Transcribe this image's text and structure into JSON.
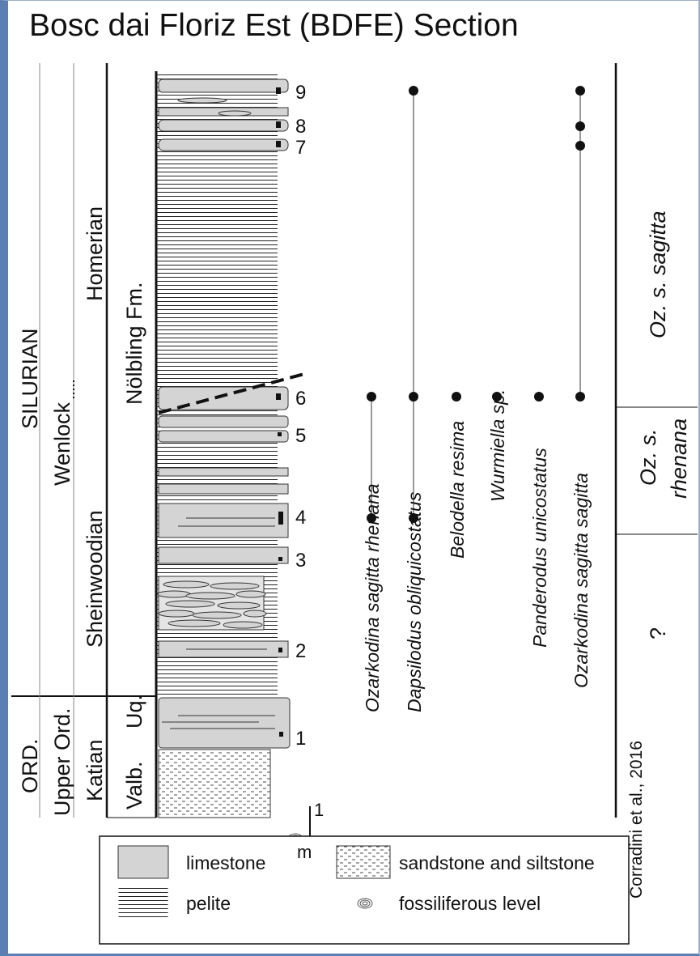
{
  "title": "Bosc dai Floriz Est (BDFE) Section",
  "credit": "Corradini et al., 2016",
  "stratigraphy": {
    "system_silurian": "SILURIAN",
    "system_ord": "ORD.",
    "series_wenlock": "Wenlock",
    "series_upper_ord": "Upper Ord.",
    "stage_homerian": "Homerian",
    "stage_sheinwoodian": "Sheinwoodian",
    "stage_katian": "Katian",
    "formation_nolbling": "Nölbling Fm.",
    "formation_uq": "Uq.",
    "formation_valb": "Valb."
  },
  "samples": [
    "1",
    "2",
    "3",
    "4",
    "5",
    "6",
    "7",
    "8",
    "9"
  ],
  "scale": {
    "value": "1",
    "unit": "m"
  },
  "taxa": [
    "Ozarkodina sagitta rhenana",
    "Dapsilodus obliquicostatus",
    "Belodella resima",
    "Wurmiella sp.",
    "Panderodus unicostatus",
    "Ozarkodina sagitta sagitta"
  ],
  "zones": {
    "upper": "Oz. s. sagitta",
    "middle_line1": "Oz. s.",
    "middle_line2": "rhenana",
    "lower": "?"
  },
  "legend": {
    "limestone": "limestone",
    "pelite": "pelite",
    "sandstone": "sandstone and siltstone",
    "fossiliferous": "fossiliferous level"
  }
}
